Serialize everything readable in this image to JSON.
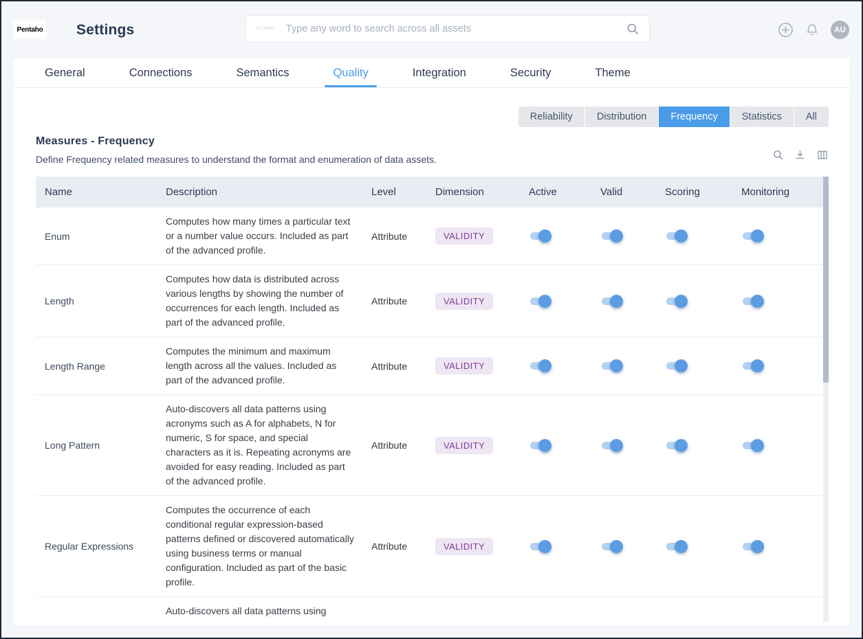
{
  "header": {
    "logo_text": "Pentaho",
    "title": "Settings",
    "search": {
      "brand": "HITACHI",
      "placeholder": "Type any word to search across all assets"
    },
    "avatar": "AU"
  },
  "tabs": {
    "items": [
      "General",
      "Connections",
      "Semantics",
      "Quality",
      "Integration",
      "Security",
      "Theme"
    ],
    "active": "Quality"
  },
  "filters": {
    "items": [
      "Reliability",
      "Distribution",
      "Frequency",
      "Statistics",
      "All"
    ],
    "active": "Frequency"
  },
  "section": {
    "title": "Measures - Frequency",
    "subtitle": "Define Frequency related measures to understand the format and enumeration of data assets."
  },
  "table": {
    "columns": [
      "Name",
      "Description",
      "Level",
      "Dimension",
      "Active",
      "Valid",
      "Scoring",
      "Monitoring"
    ],
    "rows": [
      {
        "name": "Enum",
        "description": "Computes how many times a particular text or a number value occurs. Included as part of the advanced profile.",
        "level": "Attribute",
        "dimension": "VALIDITY",
        "toggles": {
          "active": true,
          "valid": true,
          "scoring": true,
          "monitoring": true
        }
      },
      {
        "name": "Length",
        "description": "Computes how data is distributed across various lengths by showing the number of occurrences for each length. Included as part of the advanced profile.",
        "level": "Attribute",
        "dimension": "VALIDITY",
        "toggles": {
          "active": true,
          "valid": true,
          "scoring": true,
          "monitoring": true
        }
      },
      {
        "name": "Length Range",
        "description": "Computes the minimum and maximum length across all the values. Included as part of the advanced profile.",
        "level": "Attribute",
        "dimension": "VALIDITY",
        "toggles": {
          "active": true,
          "valid": true,
          "scoring": true,
          "monitoring": true
        }
      },
      {
        "name": "Long Pattern",
        "description": "Auto-discovers all data patterns using acronyms such as A for alphabets, N for numeric, S for space, and special characters as it is. Repeating acronyms are avoided for easy reading. Included as part of the advanced profile.",
        "level": "Attribute",
        "dimension": "VALIDITY",
        "toggles": {
          "active": true,
          "valid": true,
          "scoring": true,
          "monitoring": true
        }
      },
      {
        "name": "Regular Expressions",
        "description": "Computes the occurrence of each conditional regular expression-based patterns defined or discovered automatically using business terms or manual configuration. Included as part of the basic profile.",
        "level": "Attribute",
        "dimension": "VALIDITY",
        "toggles": {
          "active": true,
          "valid": true,
          "scoring": true,
          "monitoring": true
        }
      },
      {
        "name": "",
        "description": "Auto-discovers all data patterns using",
        "level": "",
        "dimension": "",
        "partial": true
      }
    ]
  },
  "colors": {
    "accent": "#4b9ce8",
    "badge_bg": "#efe6f4",
    "badge_text": "#7d3e9b",
    "toggle_track": "#b3d1f2",
    "toggle_knob": "#5b9ce3",
    "table_header_bg": "#e9edf3"
  }
}
